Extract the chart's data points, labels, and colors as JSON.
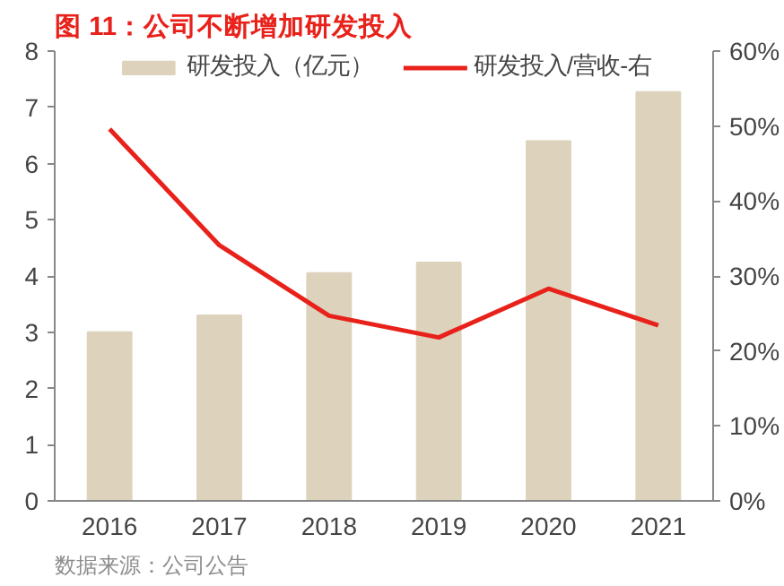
{
  "chart_data": {
    "type": "bar",
    "title": "图 11：公司不断增加研发投入",
    "categories": [
      "2016",
      "2017",
      "2018",
      "2019",
      "2020",
      "2021"
    ],
    "series": [
      {
        "name": "研发投入（亿元）",
        "color": "#ddd3bd",
        "values": [
          3.0,
          3.3,
          4.05,
          4.24,
          6.4,
          7.27
        ]
      },
      {
        "name": "研发投入/营收-右",
        "type": "line",
        "axis": "y2",
        "color": "#e8221b",
        "values": [
          49.6,
          34.1,
          24.7,
          21.8,
          28.3,
          23.4
        ]
      }
    ],
    "ylim": [
      0,
      8
    ],
    "yticks": [
      0,
      1,
      2,
      3,
      4,
      5,
      6,
      7,
      8
    ],
    "y2lim": [
      0,
      60
    ],
    "y2ticks": [
      {
        "value": 0,
        "label": "0%"
      },
      {
        "value": 10,
        "label": "10%"
      },
      {
        "value": 20,
        "label": "20%"
      },
      {
        "value": 30,
        "label": "30%"
      },
      {
        "value": 40,
        "label": "40%"
      },
      {
        "value": 50,
        "label": "50%"
      },
      {
        "value": 60,
        "label": "60%"
      }
    ],
    "annotations": [
      "数据来源：公司公告"
    ],
    "grid": false,
    "legend": "top",
    "marker": "none",
    "line_style": "solid"
  }
}
